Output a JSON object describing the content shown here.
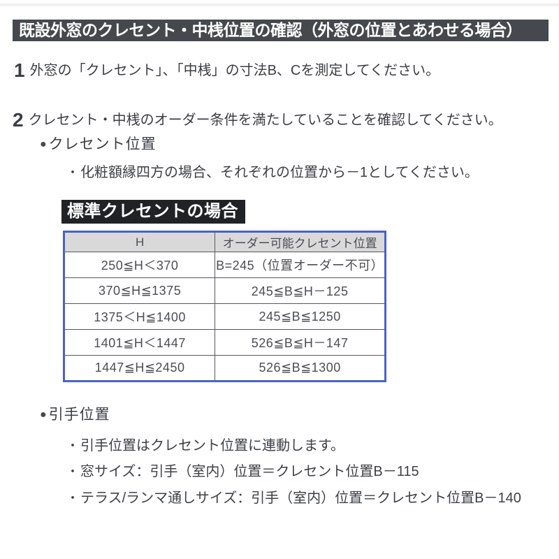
{
  "markers": {
    "circle": "●",
    "dot": "・"
  },
  "header": {
    "title": "既設外窓のクレセント・中桟位置の確認（外窓の位置とあわせる場合）"
  },
  "steps": [
    {
      "number": "1",
      "text": "外窓の「クレセント」、「中桟」の寸法B、Cを測定してください。"
    },
    {
      "number": "2",
      "text": "クレセント・中桟のオーダー条件を満たしていることを確認してください。"
    }
  ],
  "crescent_section": {
    "heading": "クレセント位置",
    "note": "化粧額縁四方の場合、それぞれの位置から－1としてください。",
    "table_label": "標準クレセントの場合"
  },
  "table": {
    "headers": [
      "H",
      "オーダー可能クレセント位置"
    ],
    "rows": [
      {
        "h": "250≦H＜370",
        "order": "B=245（位置オーダー不可）"
      },
      {
        "h": "370≦H≦1375",
        "order": "245≦B≦H－125"
      },
      {
        "h": "1375＜H≦1400",
        "order": "245≦B≦1250"
      },
      {
        "h": "1401≦H＜1447",
        "order": "526≦B≦H－147"
      },
      {
        "h": "1447≦H≦2450",
        "order": "526≦B≦1300"
      }
    ]
  },
  "handle_section": {
    "heading": "引手位置",
    "notes": [
      "引手位置はクレセント位置に連動します。",
      "窓サイズ：引手（室内）位置＝クレセント位置B－115",
      "テラス/ランマ通しサイズ：引手（室内）位置＝クレセント位置B－140"
    ]
  },
  "colors": {
    "header_bar_bg": "#45484d",
    "label_bg": "#202226",
    "table_border": "#4a62c6",
    "table_header_bg": "#d9d9d9",
    "body_text": "#3b3e43"
  }
}
